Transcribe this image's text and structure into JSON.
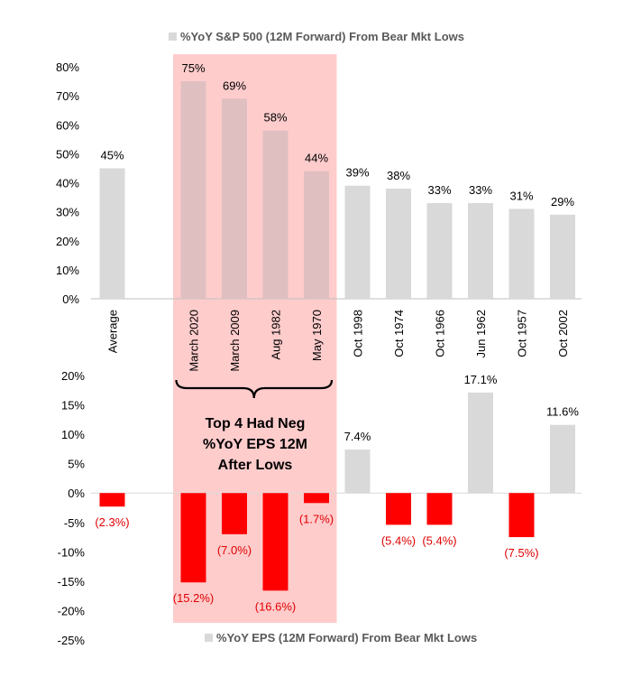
{
  "chart_data": [
    {
      "type": "bar",
      "title": "",
      "legend": "%YoY S&P 500 (12M Forward) From Bear Mkt Lows",
      "legend_position": "top",
      "categories": [
        "Average",
        "March 2020",
        "March 2009",
        "Aug 1982",
        "May 1970",
        "Oct 1998",
        "Oct 1974",
        "Oct 1966",
        "Jun 1962",
        "Oct 1957",
        "Oct 2002"
      ],
      "values": [
        45,
        75,
        69,
        58,
        44,
        39,
        38,
        33,
        33,
        31,
        29
      ],
      "value_labels": [
        "45%",
        "75%",
        "69%",
        "58%",
        "44%",
        "39%",
        "38%",
        "33%",
        "33%",
        "31%",
        "29%"
      ],
      "ylim": [
        0,
        80
      ],
      "yticks": [
        "0%",
        "10%",
        "20%",
        "30%",
        "40%",
        "50%",
        "60%",
        "70%",
        "80%"
      ],
      "bar_color": "#d9d9d9",
      "grid": false
    },
    {
      "type": "bar",
      "title": "",
      "legend": "%YoY EPS (12M Forward) From Bear Mkt Lows",
      "legend_position": "bottom",
      "categories": [
        "Average",
        "March 2020",
        "March 2009",
        "Aug 1982",
        "May 1970",
        "Oct 1998",
        "Oct 1974",
        "Oct 1966",
        "Jun 1962",
        "Oct 1957",
        "Oct 2002"
      ],
      "values": [
        -2.3,
        -15.2,
        -7.0,
        -16.6,
        -1.7,
        7.4,
        -5.4,
        -5.4,
        17.1,
        -7.5,
        11.6
      ],
      "value_labels": [
        "(2.3%)",
        "(15.2%)",
        "(7.0%)",
        "(16.6%)",
        "(1.7%)",
        "7.4%",
        "(5.4%)",
        "(5.4%)",
        "17.1%",
        "(7.5%)",
        "11.6%"
      ],
      "ylim": [
        -25,
        20
      ],
      "yticks": [
        "-25%",
        "-20%",
        "-15%",
        "-10%",
        "-5%",
        "0%",
        "5%",
        "10%",
        "15%",
        "20%"
      ],
      "positive_color": "#d9d9d9",
      "negative_color": "#ff0000",
      "grid": false
    }
  ],
  "highlight": {
    "categories": [
      "March 2020",
      "March 2009",
      "Aug 1982",
      "May 1970"
    ],
    "color": "#ffcccc",
    "annotation_lines": [
      "Top 4 Had Neg",
      "%YoY EPS 12M",
      "After Lows"
    ]
  }
}
